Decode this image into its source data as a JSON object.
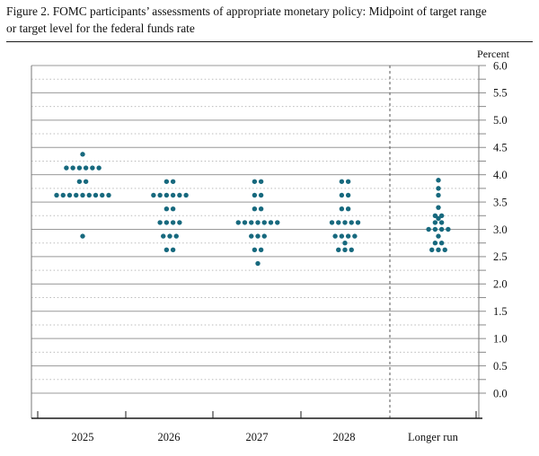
{
  "figure": {
    "title_line1": "Figure 2. FOMC participants’ assessments of appropriate monetary policy: Midpoint of target range",
    "title_line2": "or target level for the federal funds rate"
  },
  "chart_data": {
    "type": "scatter",
    "variant": "fomc-dot-plot",
    "title": "Figure 2. FOMC participants’ assessments of appropriate monetary policy: Midpoint of target range or target level for the federal funds rate",
    "unit_label": "Percent",
    "ylim": [
      0.0,
      6.0
    ],
    "y_major_gridline_step": 0.5,
    "y_minor_gridline_step": 0.25,
    "grid": "major solid every 0.5, minor dotted every 0.25",
    "legend_position": "none",
    "y_tick_labels": [
      "6.0",
      "5.5",
      "5.0",
      "4.5",
      "4.0",
      "3.5",
      "3.0",
      "2.5",
      "2.0",
      "1.5",
      "1.0",
      "0.5",
      "0.0"
    ],
    "categories": [
      "2025",
      "2026",
      "2027",
      "2028",
      "Longer run"
    ],
    "separator_before_category": "Longer run",
    "dot_color": "#17697e",
    "axis_color": "#1a1a1a",
    "gridline_major_color": "#999999",
    "gridline_minor_color": "#bbbbbb",
    "columns": [
      {
        "label": "2025",
        "dots": [
          {
            "rate": 4.375,
            "count": 1
          },
          {
            "rate": 4.125,
            "count": 6
          },
          {
            "rate": 3.875,
            "count": 2
          },
          {
            "rate": 3.625,
            "count": 9
          },
          {
            "rate": 2.875,
            "count": 1
          }
        ]
      },
      {
        "label": "2026",
        "dots": [
          {
            "rate": 3.875,
            "count": 2
          },
          {
            "rate": 3.625,
            "count": 6
          },
          {
            "rate": 3.375,
            "count": 2
          },
          {
            "rate": 3.125,
            "count": 4
          },
          {
            "rate": 2.875,
            "count": 3
          },
          {
            "rate": 2.625,
            "count": 2
          }
        ]
      },
      {
        "label": "2027",
        "dots": [
          {
            "rate": 3.875,
            "count": 2
          },
          {
            "rate": 3.625,
            "count": 2
          },
          {
            "rate": 3.375,
            "count": 2
          },
          {
            "rate": 3.125,
            "count": 7
          },
          {
            "rate": 2.875,
            "count": 3
          },
          {
            "rate": 2.625,
            "count": 2
          },
          {
            "rate": 2.375,
            "count": 1
          }
        ]
      },
      {
        "label": "2028",
        "dots": [
          {
            "rate": 3.875,
            "count": 2
          },
          {
            "rate": 3.625,
            "count": 2
          },
          {
            "rate": 3.375,
            "count": 2
          },
          {
            "rate": 3.125,
            "count": 5
          },
          {
            "rate": 2.875,
            "count": 4
          },
          {
            "rate": 2.75,
            "count": 1
          },
          {
            "rate": 2.625,
            "count": 3
          }
        ]
      },
      {
        "label": "Longer run",
        "dots": [
          {
            "rate": 3.9,
            "count": 1
          },
          {
            "rate": 3.75,
            "count": 1
          },
          {
            "rate": 3.625,
            "count": 1
          },
          {
            "rate": 3.4,
            "count": 1
          },
          {
            "rate": 3.25,
            "count": 2
          },
          {
            "rate": 3.2,
            "count": 1
          },
          {
            "rate": 3.125,
            "count": 2
          },
          {
            "rate": 3.0,
            "count": 4
          },
          {
            "rate": 2.875,
            "count": 1
          },
          {
            "rate": 2.75,
            "count": 2
          },
          {
            "rate": 2.625,
            "count": 3
          }
        ]
      }
    ]
  }
}
